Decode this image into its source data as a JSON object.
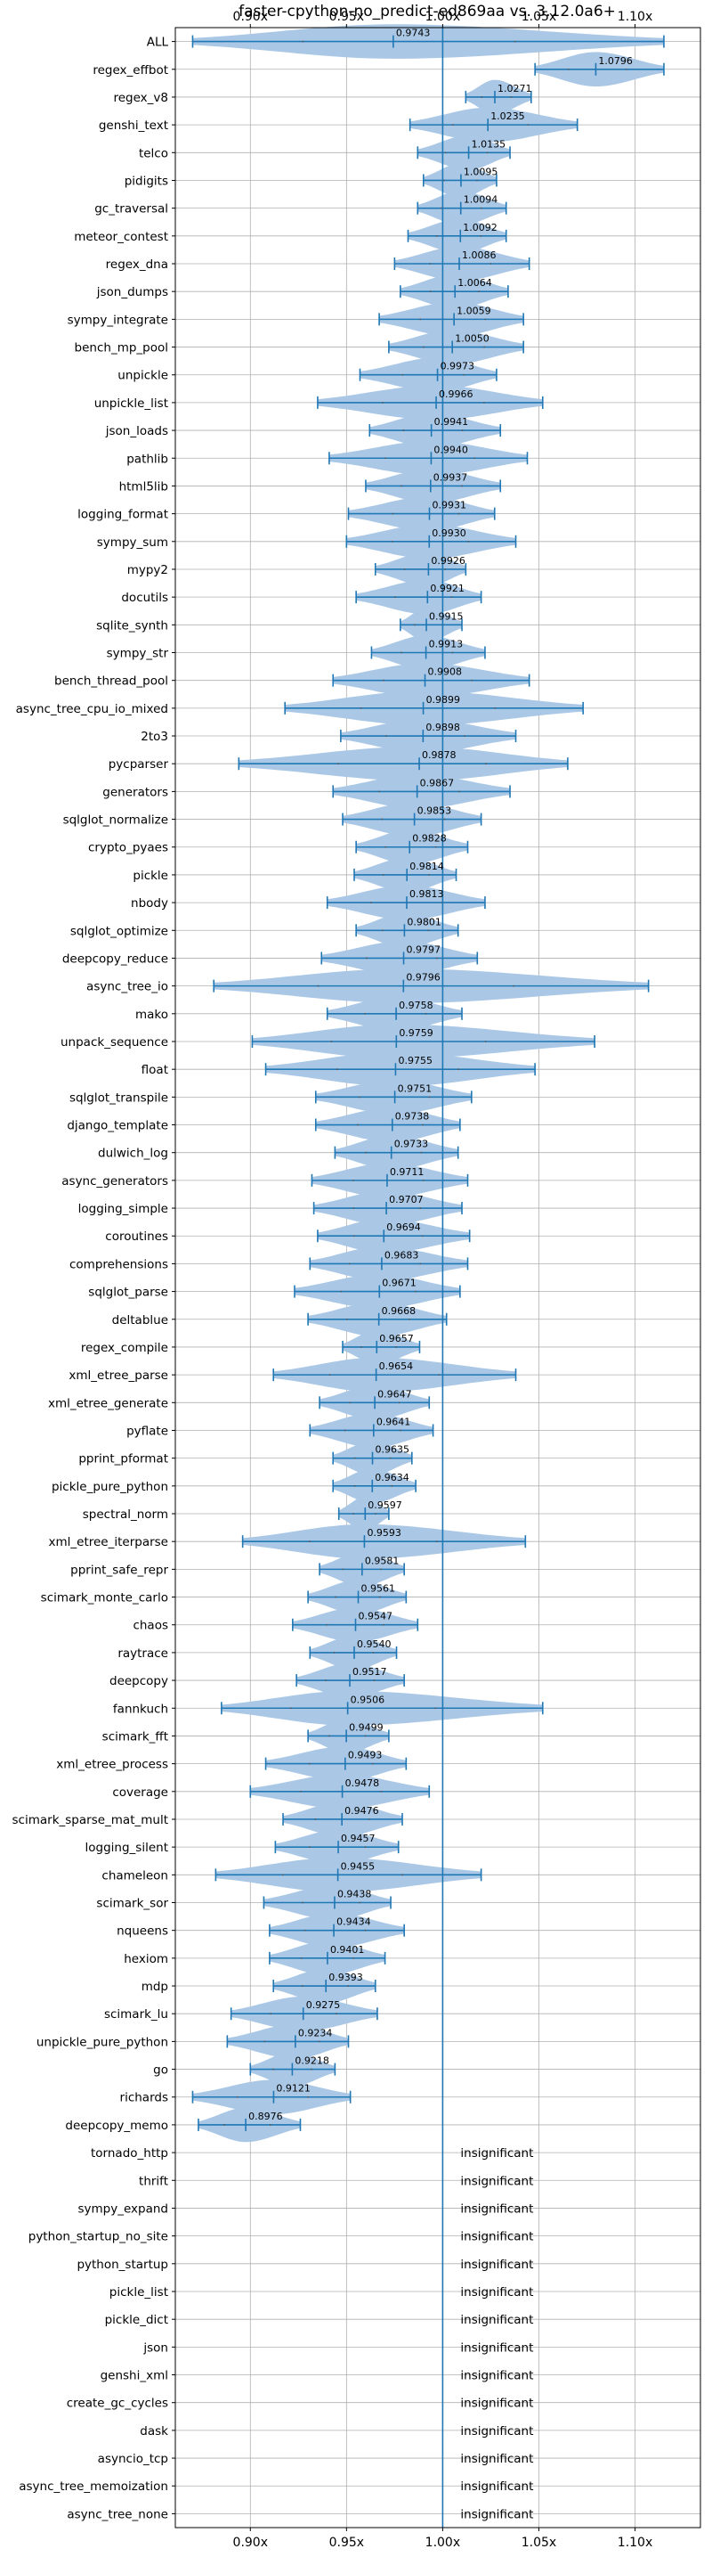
{
  "chart_data": {
    "type": "violin",
    "title": "faster-cpython-no_predict-ed869aa vs. 3.12.0a6+",
    "xlim": [
      0.861,
      1.134
    ],
    "x_ticks": [
      0.9,
      0.95,
      1.0,
      1.05,
      1.1
    ],
    "x_tick_labels": [
      "0.90x",
      "0.95x",
      "1.00x",
      "1.05x",
      "1.10x"
    ],
    "x_tick_positions": [
      "top",
      "bottom"
    ],
    "reference_line": 1.0,
    "grid": true,
    "colors": {
      "violin": "#aac8e6",
      "line": "#1f77b4",
      "grid": "#b0b0b0"
    },
    "insignificant_label": "insignificant",
    "benchmarks": [
      {
        "name": "ALL",
        "value": 0.9743,
        "min": 0.87,
        "max": 1.115
      },
      {
        "name": "regex_effbot",
        "value": 1.0796,
        "min": 1.048,
        "max": 1.115
      },
      {
        "name": "regex_v8",
        "value": 1.0271,
        "min": 1.012,
        "max": 1.046
      },
      {
        "name": "genshi_text",
        "value": 1.0235,
        "min": 0.983,
        "max": 1.07
      },
      {
        "name": "telco",
        "value": 1.0135,
        "min": 0.987,
        "max": 1.035
      },
      {
        "name": "pidigits",
        "value": 1.0095,
        "min": 0.99,
        "max": 1.028
      },
      {
        "name": "gc_traversal",
        "value": 1.0094,
        "min": 0.987,
        "max": 1.033
      },
      {
        "name": "meteor_contest",
        "value": 1.0092,
        "min": 0.982,
        "max": 1.033
      },
      {
        "name": "regex_dna",
        "value": 1.0086,
        "min": 0.975,
        "max": 1.045
      },
      {
        "name": "json_dumps",
        "value": 1.0064,
        "min": 0.978,
        "max": 1.034
      },
      {
        "name": "sympy_integrate",
        "value": 1.0059,
        "min": 0.967,
        "max": 1.042
      },
      {
        "name": "bench_mp_pool",
        "value": 1.005,
        "min": 0.972,
        "max": 1.042
      },
      {
        "name": "unpickle",
        "value": 0.9973,
        "min": 0.957,
        "max": 1.028
      },
      {
        "name": "unpickle_list",
        "value": 0.9966,
        "min": 0.935,
        "max": 1.052
      },
      {
        "name": "json_loads",
        "value": 0.9941,
        "min": 0.962,
        "max": 1.03
      },
      {
        "name": "pathlib",
        "value": 0.994,
        "min": 0.941,
        "max": 1.044
      },
      {
        "name": "html5lib",
        "value": 0.9937,
        "min": 0.96,
        "max": 1.03
      },
      {
        "name": "logging_format",
        "value": 0.9931,
        "min": 0.951,
        "max": 1.027
      },
      {
        "name": "sympy_sum",
        "value": 0.993,
        "min": 0.95,
        "max": 1.038
      },
      {
        "name": "mypy2",
        "value": 0.9926,
        "min": 0.965,
        "max": 1.012
      },
      {
        "name": "docutils",
        "value": 0.9921,
        "min": 0.955,
        "max": 1.02
      },
      {
        "name": "sqlite_synth",
        "value": 0.9915,
        "min": 0.978,
        "max": 1.01
      },
      {
        "name": "sympy_str",
        "value": 0.9913,
        "min": 0.963,
        "max": 1.022
      },
      {
        "name": "bench_thread_pool",
        "value": 0.9908,
        "min": 0.943,
        "max": 1.045
      },
      {
        "name": "async_tree_cpu_io_mixed",
        "value": 0.9899,
        "min": 0.918,
        "max": 1.073
      },
      {
        "name": "2to3",
        "value": 0.9898,
        "min": 0.947,
        "max": 1.038
      },
      {
        "name": "pycparser",
        "value": 0.9878,
        "min": 0.894,
        "max": 1.065
      },
      {
        "name": "generators",
        "value": 0.9867,
        "min": 0.943,
        "max": 1.035
      },
      {
        "name": "sqlglot_normalize",
        "value": 0.9853,
        "min": 0.948,
        "max": 1.02
      },
      {
        "name": "crypto_pyaes",
        "value": 0.9828,
        "min": 0.955,
        "max": 1.013
      },
      {
        "name": "pickle",
        "value": 0.9814,
        "min": 0.954,
        "max": 1.007
      },
      {
        "name": "nbody",
        "value": 0.9813,
        "min": 0.94,
        "max": 1.022
      },
      {
        "name": "sqlglot_optimize",
        "value": 0.9801,
        "min": 0.955,
        "max": 1.008
      },
      {
        "name": "deepcopy_reduce",
        "value": 0.9797,
        "min": 0.937,
        "max": 1.018
      },
      {
        "name": "async_tree_io",
        "value": 0.9796,
        "min": 0.881,
        "max": 1.107
      },
      {
        "name": "mako",
        "value": 0.9758,
        "min": 0.94,
        "max": 1.01
      },
      {
        "name": "unpack_sequence",
        "value": 0.9759,
        "min": 0.901,
        "max": 1.079
      },
      {
        "name": "float",
        "value": 0.9755,
        "min": 0.908,
        "max": 1.048
      },
      {
        "name": "sqlglot_transpile",
        "value": 0.9751,
        "min": 0.934,
        "max": 1.015
      },
      {
        "name": "django_template",
        "value": 0.9738,
        "min": 0.934,
        "max": 1.009
      },
      {
        "name": "dulwich_log",
        "value": 0.9733,
        "min": 0.944,
        "max": 1.008
      },
      {
        "name": "async_generators",
        "value": 0.9711,
        "min": 0.932,
        "max": 1.013
      },
      {
        "name": "logging_simple",
        "value": 0.9707,
        "min": 0.933,
        "max": 1.01
      },
      {
        "name": "coroutines",
        "value": 0.9694,
        "min": 0.935,
        "max": 1.014
      },
      {
        "name": "comprehensions",
        "value": 0.9683,
        "min": 0.931,
        "max": 1.013
      },
      {
        "name": "sqlglot_parse",
        "value": 0.9671,
        "min": 0.923,
        "max": 1.009
      },
      {
        "name": "deltablue",
        "value": 0.9668,
        "min": 0.93,
        "max": 1.002
      },
      {
        "name": "regex_compile",
        "value": 0.9657,
        "min": 0.948,
        "max": 0.988
      },
      {
        "name": "xml_etree_parse",
        "value": 0.9654,
        "min": 0.912,
        "max": 1.038
      },
      {
        "name": "xml_etree_generate",
        "value": 0.9647,
        "min": 0.936,
        "max": 0.993
      },
      {
        "name": "pyflate",
        "value": 0.9641,
        "min": 0.931,
        "max": 0.995
      },
      {
        "name": "pprint_pformat",
        "value": 0.9635,
        "min": 0.943,
        "max": 0.984
      },
      {
        "name": "pickle_pure_python",
        "value": 0.9634,
        "min": 0.943,
        "max": 0.986
      },
      {
        "name": "spectral_norm",
        "value": 0.9597,
        "min": 0.946,
        "max": 0.972
      },
      {
        "name": "xml_etree_iterparse",
        "value": 0.9593,
        "min": 0.896,
        "max": 1.043
      },
      {
        "name": "pprint_safe_repr",
        "value": 0.9581,
        "min": 0.936,
        "max": 0.98
      },
      {
        "name": "scimark_monte_carlo",
        "value": 0.9561,
        "min": 0.93,
        "max": 0.981
      },
      {
        "name": "chaos",
        "value": 0.9547,
        "min": 0.922,
        "max": 0.987
      },
      {
        "name": "raytrace",
        "value": 0.954,
        "min": 0.931,
        "max": 0.976
      },
      {
        "name": "deepcopy",
        "value": 0.9517,
        "min": 0.924,
        "max": 0.98
      },
      {
        "name": "fannkuch",
        "value": 0.9506,
        "min": 0.885,
        "max": 1.052
      },
      {
        "name": "scimark_fft",
        "value": 0.9499,
        "min": 0.93,
        "max": 0.972
      },
      {
        "name": "xml_etree_process",
        "value": 0.9493,
        "min": 0.908,
        "max": 0.981
      },
      {
        "name": "coverage",
        "value": 0.9478,
        "min": 0.9,
        "max": 0.993
      },
      {
        "name": "scimark_sparse_mat_mult",
        "value": 0.9476,
        "min": 0.917,
        "max": 0.979
      },
      {
        "name": "logging_silent",
        "value": 0.9457,
        "min": 0.913,
        "max": 0.977
      },
      {
        "name": "chameleon",
        "value": 0.9455,
        "min": 0.882,
        "max": 1.02
      },
      {
        "name": "scimark_sor",
        "value": 0.9438,
        "min": 0.907,
        "max": 0.973
      },
      {
        "name": "nqueens",
        "value": 0.9434,
        "min": 0.91,
        "max": 0.98
      },
      {
        "name": "hexiom",
        "value": 0.9401,
        "min": 0.91,
        "max": 0.97
      },
      {
        "name": "mdp",
        "value": 0.9393,
        "min": 0.912,
        "max": 0.965
      },
      {
        "name": "scimark_lu",
        "value": 0.9275,
        "min": 0.89,
        "max": 0.966
      },
      {
        "name": "unpickle_pure_python",
        "value": 0.9234,
        "min": 0.888,
        "max": 0.951
      },
      {
        "name": "go",
        "value": 0.9218,
        "min": 0.9,
        "max": 0.944
      },
      {
        "name": "richards",
        "value": 0.9121,
        "min": 0.87,
        "max": 0.952
      },
      {
        "name": "deepcopy_memo",
        "value": 0.8976,
        "min": 0.873,
        "max": 0.926
      },
      {
        "name": "tornado_http",
        "insignificant": true
      },
      {
        "name": "thrift",
        "insignificant": true
      },
      {
        "name": "sympy_expand",
        "insignificant": true
      },
      {
        "name": "python_startup_no_site",
        "insignificant": true
      },
      {
        "name": "python_startup",
        "insignificant": true
      },
      {
        "name": "pickle_list",
        "insignificant": true
      },
      {
        "name": "pickle_dict",
        "insignificant": true
      },
      {
        "name": "json",
        "insignificant": true
      },
      {
        "name": "genshi_xml",
        "insignificant": true
      },
      {
        "name": "create_gc_cycles",
        "insignificant": true
      },
      {
        "name": "dask",
        "insignificant": true
      },
      {
        "name": "asyncio_tcp",
        "insignificant": true
      },
      {
        "name": "async_tree_memoization",
        "insignificant": true
      },
      {
        "name": "async_tree_none",
        "insignificant": true
      }
    ]
  }
}
